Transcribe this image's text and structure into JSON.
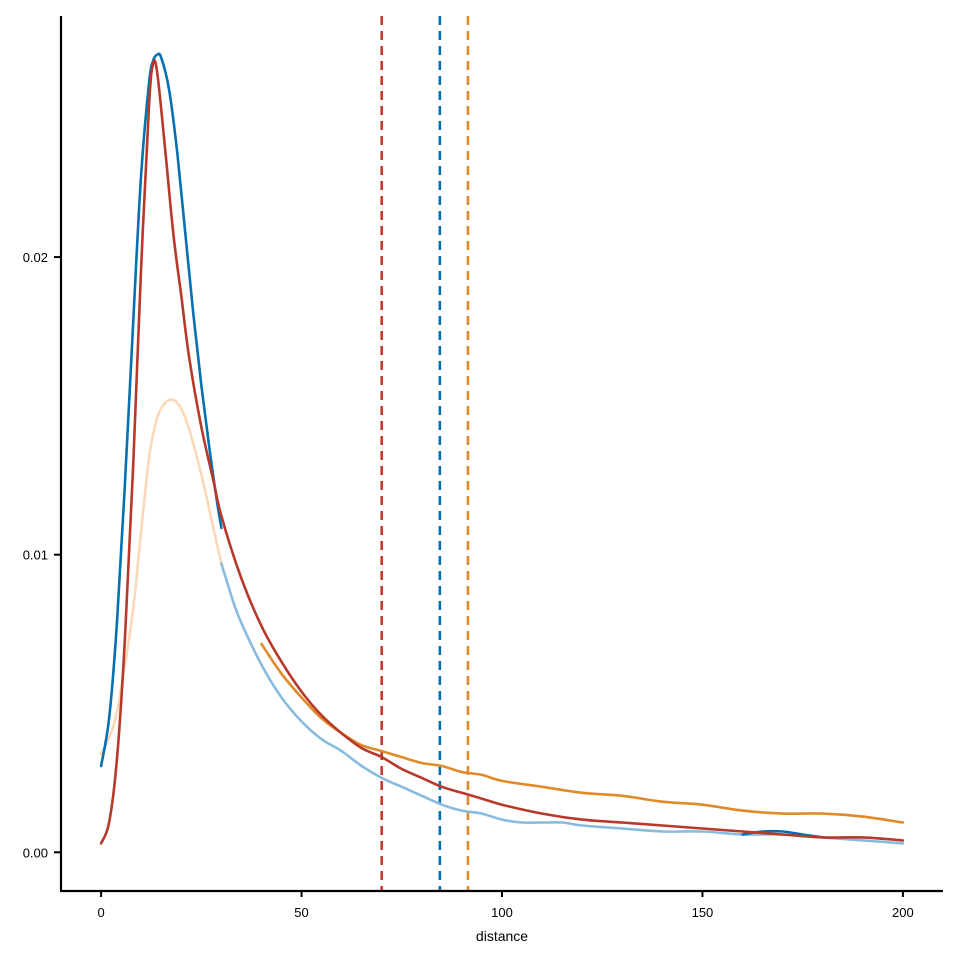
{
  "chart_data": {
    "type": "line",
    "title": "",
    "xlabel": "distance",
    "ylabel": "",
    "xlim": [
      -10,
      210
    ],
    "ylim": [
      -0.0013,
      0.0281
    ],
    "x_ticks": [
      0,
      50,
      100,
      150,
      200
    ],
    "x_tick_labels": [
      "0",
      "50",
      "100",
      "150",
      "200"
    ],
    "y_ticks": [
      0.0,
      0.01,
      0.02
    ],
    "y_tick_labels": [
      "0.00",
      "0.01",
      "0.02"
    ],
    "grid": false,
    "legend": "none",
    "series": [
      {
        "color": "#FAD9B8",
        "points": [
          [
            0,
            0.0033
          ],
          [
            3,
            0.0042
          ],
          [
            5,
            0.0055
          ],
          [
            8,
            0.0082
          ],
          [
            10,
            0.0108
          ],
          [
            12,
            0.0133
          ],
          [
            14,
            0.0146
          ],
          [
            16,
            0.0151
          ],
          [
            18,
            0.0152
          ],
          [
            20,
            0.0149
          ],
          [
            22,
            0.0142
          ],
          [
            25,
            0.0127
          ],
          [
            28,
            0.0109
          ],
          [
            30,
            0.0097
          ]
        ]
      },
      {
        "color": "#88BBDE",
        "points": [
          [
            30,
            0.0097
          ],
          [
            33,
            0.0084
          ],
          [
            35,
            0.0077
          ],
          [
            40,
            0.0063
          ],
          [
            45,
            0.0052
          ],
          [
            50,
            0.0044
          ],
          [
            55,
            0.0038
          ],
          [
            60,
            0.0034
          ],
          [
            65,
            0.0029
          ],
          [
            70,
            0.0025
          ],
          [
            75,
            0.0022
          ],
          [
            80,
            0.0019
          ],
          [
            85,
            0.0016
          ],
          [
            90,
            0.0014
          ],
          [
            95,
            0.0013
          ],
          [
            100,
            0.0011
          ],
          [
            105,
            0.001
          ],
          [
            110,
            0.001
          ],
          [
            115,
            0.001
          ],
          [
            120,
            0.0009
          ],
          [
            130,
            0.0008
          ],
          [
            140,
            0.0007
          ],
          [
            150,
            0.0007
          ],
          [
            160,
            0.0006
          ],
          [
            170,
            0.0006
          ],
          [
            180,
            0.0005
          ],
          [
            190,
            0.0004
          ],
          [
            200,
            0.0003
          ]
        ]
      },
      {
        "color": "#0571B0",
        "points": [
          [
            0,
            0.0029
          ],
          [
            2,
            0.0045
          ],
          [
            4,
            0.0078
          ],
          [
            6,
            0.0125
          ],
          [
            8,
            0.0178
          ],
          [
            10,
            0.0228
          ],
          [
            12,
            0.0259
          ],
          [
            13,
            0.0266
          ],
          [
            14,
            0.0268
          ],
          [
            15,
            0.0267
          ],
          [
            17,
            0.0256
          ],
          [
            19,
            0.0235
          ],
          [
            21,
            0.0208
          ],
          [
            23,
            0.0181
          ],
          [
            25,
            0.0157
          ],
          [
            27,
            0.0136
          ],
          [
            29,
            0.0117
          ],
          [
            30,
            0.0109
          ]
        ]
      },
      {
        "color": "#0571B0",
        "points": [
          [
            160,
            0.0006
          ],
          [
            165,
            0.0007
          ],
          [
            170,
            0.0007
          ],
          [
            175,
            0.0006
          ],
          [
            180,
            0.0005
          ]
        ]
      },
      {
        "color": "#E08A2A",
        "points": [
          [
            40,
            0.007
          ],
          [
            45,
            0.006
          ],
          [
            50,
            0.0052
          ],
          [
            55,
            0.0045
          ],
          [
            60,
            0.004
          ],
          [
            65,
            0.0036
          ],
          [
            70,
            0.0034
          ],
          [
            75,
            0.0032
          ],
          [
            80,
            0.003
          ],
          [
            85,
            0.0029
          ],
          [
            90,
            0.0027
          ],
          [
            95,
            0.0026
          ],
          [
            100,
            0.0024
          ],
          [
            110,
            0.0022
          ],
          [
            120,
            0.002
          ],
          [
            130,
            0.0019
          ],
          [
            140,
            0.0017
          ],
          [
            150,
            0.0016
          ],
          [
            160,
            0.0014
          ],
          [
            170,
            0.0013
          ],
          [
            180,
            0.0013
          ],
          [
            190,
            0.0012
          ],
          [
            200,
            0.001
          ]
        ]
      },
      {
        "color": "#B7392A",
        "points": [
          [
            0,
            0.0003
          ],
          [
            2,
            0.001
          ],
          [
            4,
            0.0032
          ],
          [
            6,
            0.0073
          ],
          [
            8,
            0.013
          ],
          [
            10,
            0.0197
          ],
          [
            12,
            0.0252
          ],
          [
            13,
            0.0265
          ],
          [
            14,
            0.0262
          ],
          [
            16,
            0.0236
          ],
          [
            18,
            0.0208
          ],
          [
            20,
            0.0187
          ],
          [
            22,
            0.0166
          ],
          [
            25,
            0.0143
          ],
          [
            28,
            0.0125
          ],
          [
            30,
            0.0113
          ],
          [
            35,
            0.0092
          ],
          [
            40,
            0.0076
          ],
          [
            45,
            0.0064
          ],
          [
            50,
            0.0054
          ],
          [
            55,
            0.0046
          ],
          [
            60,
            0.004
          ],
          [
            65,
            0.0035
          ],
          [
            70,
            0.0032
          ],
          [
            75,
            0.0028
          ],
          [
            80,
            0.0025
          ],
          [
            85,
            0.0022
          ],
          [
            90,
            0.002
          ],
          [
            95,
            0.0018
          ],
          [
            100,
            0.0016
          ],
          [
            110,
            0.0013
          ],
          [
            120,
            0.0011
          ],
          [
            130,
            0.001
          ],
          [
            140,
            0.0009
          ],
          [
            150,
            0.0008
          ],
          [
            160,
            0.0007
          ],
          [
            170,
            0.0006
          ],
          [
            180,
            0.0005
          ],
          [
            190,
            0.0005
          ],
          [
            200,
            0.0004
          ]
        ]
      }
    ],
    "reference_lines": [
      {
        "x": 70,
        "color": "#C0392B"
      },
      {
        "x": 84.5,
        "color": "#0571B0"
      },
      {
        "x": 91.5,
        "color": "#E08A2A"
      }
    ]
  }
}
